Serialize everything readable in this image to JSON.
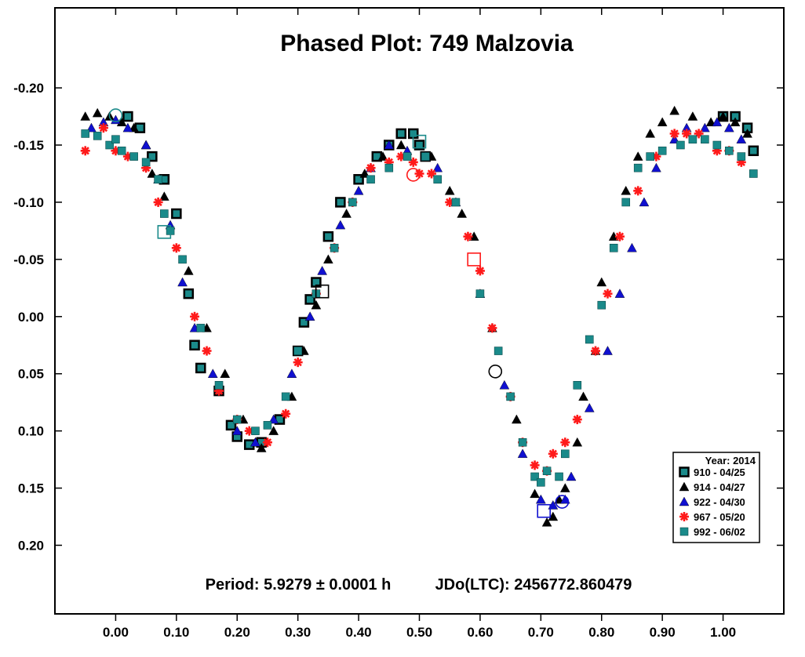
{
  "chart_data": {
    "type": "scatter",
    "title": "Phased Plot: 749 Malzovia",
    "xlabel": "",
    "ylabel": "",
    "xlim": [
      -0.1,
      1.1
    ],
    "ylim": [
      0.26,
      -0.27
    ],
    "y_inverted": true,
    "grid": false,
    "x_ticks": [
      0.0,
      0.1,
      0.2,
      0.3,
      0.4,
      0.5,
      0.6,
      0.7,
      0.8,
      0.9,
      1.0
    ],
    "x_tick_labels": [
      "0.00",
      "0.10",
      "0.20",
      "0.30",
      "0.40",
      "0.50",
      "0.60",
      "0.70",
      "0.80",
      "0.90",
      "1.00"
    ],
    "y_ticks": [
      -0.2,
      -0.15,
      -0.1,
      -0.05,
      0.0,
      0.05,
      0.1,
      0.15,
      0.2
    ],
    "y_tick_labels": [
      "-0.20",
      "-0.15",
      "-0.10",
      "-0.05",
      "0.00",
      "0.05",
      "0.10",
      "0.15",
      "0.20"
    ],
    "period_text": "Period: 5.9279 ± 0.0001 h",
    "jd_text": "JDo(LTC): 2456772.860479",
    "legend": {
      "placement": "bottom-right",
      "title": "Year: 2014"
    },
    "series": [
      {
        "name": "910 - 04/25",
        "marker": "square-outlined",
        "color": "#1a8a8a",
        "edge": "#000000",
        "x": [
          0.02,
          0.04,
          0.06,
          0.08,
          0.1,
          0.12,
          0.13,
          0.14,
          0.17,
          0.19,
          0.2,
          0.22,
          0.24,
          0.27,
          0.3,
          0.31,
          0.32,
          0.33,
          0.35,
          0.37,
          0.4,
          0.43,
          0.45,
          0.47,
          0.49,
          0.5,
          0.51,
          1.0,
          1.02,
          1.04,
          1.05
        ],
        "y": [
          -0.175,
          -0.165,
          -0.14,
          -0.12,
          -0.09,
          -0.02,
          0.025,
          0.045,
          0.065,
          0.095,
          0.105,
          0.112,
          0.11,
          0.09,
          0.03,
          0.005,
          -0.015,
          -0.03,
          -0.07,
          -0.1,
          -0.12,
          -0.14,
          -0.15,
          -0.16,
          -0.16,
          -0.15,
          -0.14,
          -0.175,
          -0.175,
          -0.165,
          -0.145
        ]
      },
      {
        "name": "914 - 04/27",
        "marker": "triangle",
        "color": "#000000",
        "x": [
          -0.05,
          -0.03,
          -0.01,
          0.01,
          0.03,
          0.05,
          0.06,
          0.08,
          0.12,
          0.15,
          0.18,
          0.21,
          0.23,
          0.24,
          0.26,
          0.29,
          0.31,
          0.33,
          0.35,
          0.38,
          0.41,
          0.44,
          0.47,
          0.52,
          0.55,
          0.57,
          0.59,
          0.62,
          0.66,
          0.69,
          0.71,
          0.72,
          0.73,
          0.74,
          0.76,
          0.77,
          0.79,
          0.8,
          0.82,
          0.84,
          0.86,
          0.88,
          0.9,
          0.92,
          0.95,
          0.98,
          1.0,
          1.02,
          1.04
        ],
        "y": [
          -0.175,
          -0.178,
          -0.175,
          -0.17,
          -0.165,
          -0.15,
          -0.125,
          -0.105,
          -0.04,
          0.01,
          0.05,
          0.09,
          0.11,
          0.115,
          0.1,
          0.07,
          0.03,
          -0.01,
          -0.05,
          -0.09,
          -0.125,
          -0.14,
          -0.15,
          -0.14,
          -0.11,
          -0.09,
          -0.07,
          0.01,
          0.09,
          0.155,
          0.18,
          0.175,
          0.16,
          0.15,
          0.11,
          0.07,
          0.03,
          -0.03,
          -0.07,
          -0.11,
          -0.14,
          -0.16,
          -0.17,
          -0.18,
          -0.175,
          -0.17,
          -0.175,
          -0.17,
          -0.16
        ]
      },
      {
        "name": "922 - 04/30",
        "marker": "triangle",
        "color": "#1010d0",
        "x": [
          -0.04,
          -0.02,
          0.0,
          0.02,
          0.05,
          0.07,
          0.09,
          0.11,
          0.13,
          0.16,
          0.2,
          0.23,
          0.26,
          0.29,
          0.32,
          0.34,
          0.37,
          0.4,
          0.42,
          0.45,
          0.48,
          0.51,
          0.53,
          0.56,
          0.6,
          0.64,
          0.67,
          0.7,
          0.72,
          0.74,
          0.75,
          0.78,
          0.81,
          0.83,
          0.85,
          0.87,
          0.89,
          0.92,
          0.94,
          0.97,
          0.99,
          1.01,
          1.03
        ],
        "y": [
          -0.165,
          -0.17,
          -0.172,
          -0.165,
          -0.15,
          -0.12,
          -0.08,
          -0.03,
          0.01,
          0.05,
          0.1,
          0.11,
          0.09,
          0.05,
          0.0,
          -0.04,
          -0.08,
          -0.11,
          -0.13,
          -0.15,
          -0.145,
          -0.14,
          -0.13,
          -0.1,
          -0.02,
          0.06,
          0.12,
          0.16,
          0.165,
          0.16,
          0.14,
          0.08,
          0.03,
          -0.02,
          -0.06,
          -0.1,
          -0.13,
          -0.155,
          -0.165,
          -0.165,
          -0.17,
          -0.165,
          -0.155
        ]
      },
      {
        "name": "967 - 05/20",
        "marker": "asterisk",
        "color": "#ff1a1a",
        "x": [
          -0.05,
          -0.02,
          0.0,
          0.02,
          0.05,
          0.07,
          0.1,
          0.13,
          0.15,
          0.17,
          0.2,
          0.22,
          0.25,
          0.28,
          0.3,
          0.33,
          0.36,
          0.39,
          0.42,
          0.45,
          0.47,
          0.49,
          0.5,
          0.52,
          0.55,
          0.58,
          0.6,
          0.62,
          0.65,
          0.67,
          0.69,
          0.71,
          0.72,
          0.74,
          0.76,
          0.79,
          0.81,
          0.83,
          0.86,
          0.89,
          0.92,
          0.94,
          0.96,
          0.99,
          1.01,
          1.03
        ],
        "y": [
          -0.145,
          -0.165,
          -0.145,
          -0.14,
          -0.13,
          -0.1,
          -0.06,
          0.0,
          0.03,
          0.065,
          0.09,
          0.1,
          0.11,
          0.085,
          0.04,
          -0.02,
          -0.06,
          -0.1,
          -0.13,
          -0.135,
          -0.14,
          -0.135,
          -0.125,
          -0.125,
          -0.1,
          -0.07,
          -0.04,
          0.01,
          0.07,
          0.11,
          0.13,
          0.135,
          0.12,
          0.11,
          0.09,
          0.03,
          -0.02,
          -0.07,
          -0.11,
          -0.14,
          -0.16,
          -0.16,
          -0.16,
          -0.145,
          -0.145,
          -0.135
        ]
      },
      {
        "name": "992 - 06/02",
        "marker": "square",
        "color": "#1a8a8a",
        "x": [
          -0.05,
          -0.03,
          -0.01,
          0.0,
          0.01,
          0.03,
          0.05,
          0.07,
          0.08,
          0.09,
          0.11,
          0.14,
          0.17,
          0.2,
          0.23,
          0.25,
          0.28,
          0.3,
          0.33,
          0.36,
          0.39,
          0.42,
          0.45,
          0.48,
          0.51,
          0.53,
          0.56,
          0.6,
          0.63,
          0.65,
          0.67,
          0.69,
          0.7,
          0.71,
          0.73,
          0.74,
          0.76,
          0.78,
          0.8,
          0.82,
          0.84,
          0.86,
          0.88,
          0.9,
          0.93,
          0.95,
          0.97,
          0.99,
          1.01,
          1.03,
          1.05
        ],
        "y": [
          -0.16,
          -0.158,
          -0.15,
          -0.155,
          -0.145,
          -0.14,
          -0.135,
          -0.12,
          -0.09,
          -0.075,
          -0.05,
          0.01,
          0.06,
          0.09,
          0.1,
          0.095,
          0.07,
          0.03,
          -0.02,
          -0.06,
          -0.1,
          -0.12,
          -0.13,
          -0.14,
          -0.14,
          -0.12,
          -0.1,
          -0.02,
          0.03,
          0.07,
          0.11,
          0.14,
          0.145,
          0.135,
          0.14,
          0.12,
          0.06,
          0.02,
          -0.01,
          -0.06,
          -0.1,
          -0.13,
          -0.14,
          -0.145,
          -0.15,
          -0.155,
          -0.155,
          -0.15,
          -0.145,
          -0.14,
          -0.125
        ]
      }
    ],
    "annotations": [
      {
        "shape": "circle",
        "color": "#1a8a8a",
        "x": 0.0,
        "y": -0.176
      },
      {
        "shape": "square",
        "color": "#1a8a8a",
        "x": 0.08,
        "y": -0.074
      },
      {
        "shape": "square",
        "color": "#000000",
        "x": 0.34,
        "y": -0.022
      },
      {
        "shape": "square",
        "color": "#1a8a8a",
        "x": 0.5,
        "y": -0.153
      },
      {
        "shape": "circle",
        "color": "#ff1a1a",
        "x": 0.49,
        "y": -0.124
      },
      {
        "shape": "square",
        "color": "#ff1a1a",
        "x": 0.59,
        "y": -0.05
      },
      {
        "shape": "circle",
        "color": "#000000",
        "x": 0.625,
        "y": 0.048
      },
      {
        "shape": "square",
        "color": "#1010d0",
        "x": 0.705,
        "y": 0.17
      },
      {
        "shape": "circle",
        "color": "#1010d0",
        "x": 0.735,
        "y": 0.162
      }
    ]
  }
}
